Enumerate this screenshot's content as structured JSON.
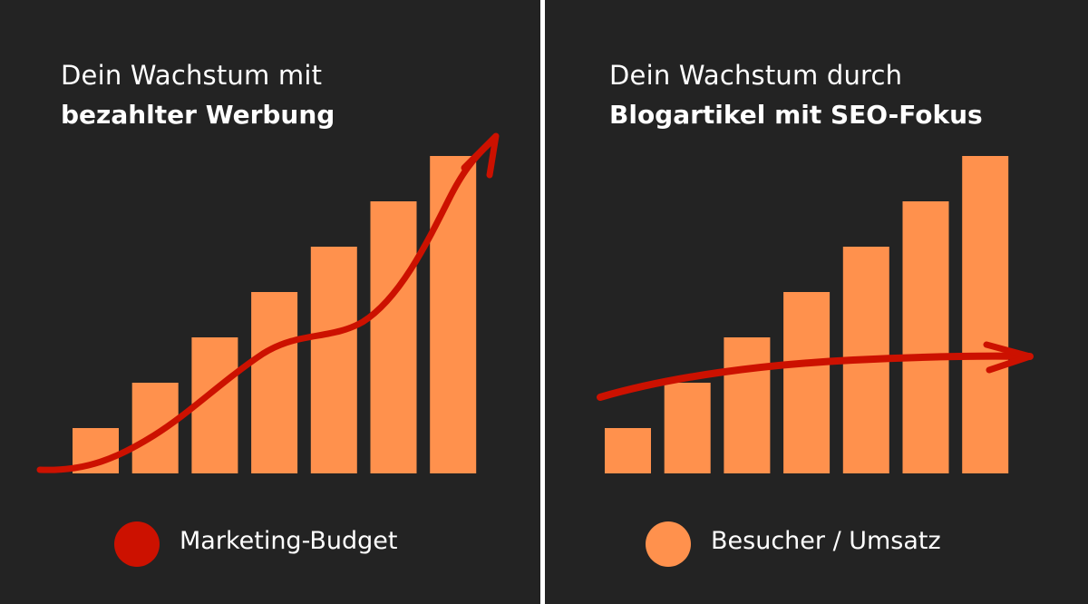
{
  "colors": {
    "background": "#232323",
    "bar": "#ff914d",
    "trend": "#cc1100",
    "divider": "#ffffff"
  },
  "panels": [
    {
      "title_line1": "Dein Wachstum mit",
      "title_line2": "bezahlter Werbung"
    },
    {
      "title_line1": "Dein Wachstum durch",
      "title_line2": "Blogartikel mit SEO-Fokus"
    }
  ],
  "legend": {
    "marketing_budget": "Marketing-Budget",
    "visitors_revenue": "Besucher / Umsatz"
  },
  "chart_data": [
    {
      "type": "bar",
      "categories": [
        "",
        "",
        "",
        "",
        "",
        "",
        ""
      ],
      "series": [
        {
          "name": "Besucher / Umsatz",
          "values": [
            1,
            2,
            3,
            4,
            5,
            6,
            7
          ]
        }
      ],
      "trend": {
        "name": "Marketing-Budget",
        "shape": "rising-curve",
        "arrow": true
      },
      "title": "Dein Wachstum mit bezahlter Werbung",
      "xlabel": "",
      "ylabel": "",
      "ylim": [
        0,
        7
      ],
      "grid": false
    },
    {
      "type": "bar",
      "categories": [
        "",
        "",
        "",
        "",
        "",
        "",
        ""
      ],
      "series": [
        {
          "name": "Besucher / Umsatz",
          "values": [
            1,
            2,
            3,
            4,
            5,
            6,
            7
          ]
        }
      ],
      "trend": {
        "name": "Marketing-Budget",
        "shape": "flat-line",
        "arrow": true
      },
      "title": "Dein Wachstum durch Blogartikel mit SEO-Fokus",
      "xlabel": "",
      "ylabel": "",
      "ylim": [
        0,
        7
      ],
      "grid": false
    }
  ]
}
